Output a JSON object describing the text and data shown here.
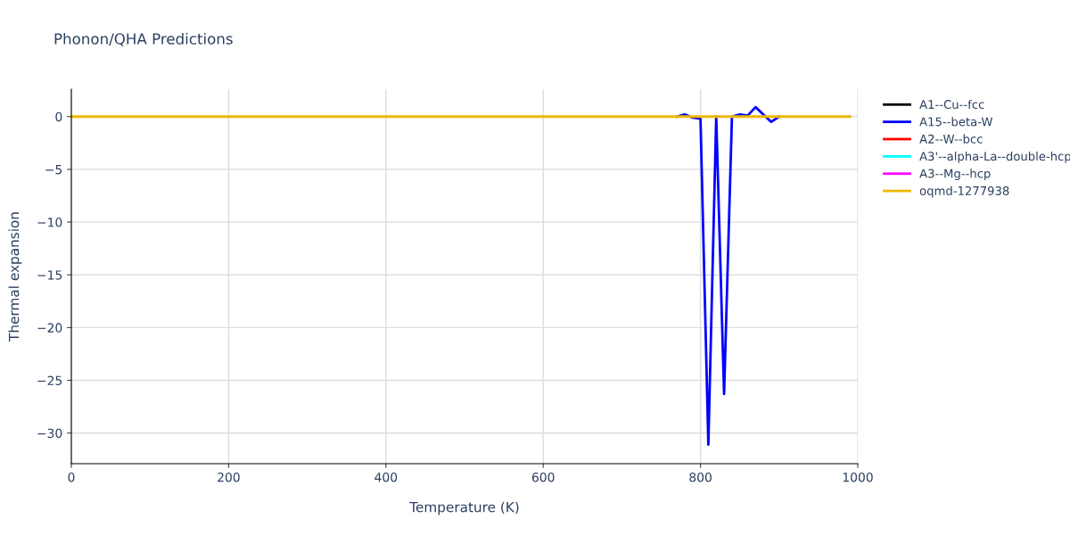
{
  "chart_data": {
    "type": "line",
    "title": "Phonon/QHA Predictions",
    "xlabel": "Temperature (K)",
    "ylabel": "Thermal expansion",
    "xlim": [
      0,
      1000
    ],
    "xticks": [
      0,
      200,
      400,
      600,
      800,
      1000
    ],
    "ylim": [
      -32.9,
      2.6
    ],
    "yticks": [
      {
        "value": -30,
        "label": "−30"
      },
      {
        "value": -25,
        "label": "−25"
      },
      {
        "value": -20,
        "label": "−20"
      },
      {
        "value": -15,
        "label": "−15"
      },
      {
        "value": -10,
        "label": "−10"
      },
      {
        "value": -5,
        "label": "−5"
      },
      0
    ],
    "grid": true,
    "legend": "top right",
    "marker": "none",
    "line_style": "solid",
    "series": [
      {
        "name": "A1--Cu--fcc",
        "color": "#000000"
      },
      {
        "name": "A15--beta-W",
        "color": "#0000ff",
        "x": [
          770,
          780,
          790,
          800,
          810,
          820,
          830,
          840,
          850,
          860,
          870,
          880,
          890,
          900
        ],
        "values": [
          0,
          0.2,
          -0.1,
          -0.2,
          -31.1,
          0,
          -26.3,
          0,
          0.2,
          0.1,
          0.9,
          0.2,
          -0.5,
          0
        ]
      },
      {
        "name": "A2--W--bcc",
        "color": "#ff0000"
      },
      {
        "name": "A3'--alpha-La--double-hcp",
        "color": "#00ffff"
      },
      {
        "name": "A3--Mg--hcp",
        "color": "#ff00ff"
      },
      {
        "name": "oqmd-1277938",
        "color": "#ecb800",
        "x": [
          0,
          200,
          400,
          600,
          770,
          990
        ],
        "values": [
          0,
          0,
          0,
          0,
          0,
          0
        ]
      }
    ]
  }
}
